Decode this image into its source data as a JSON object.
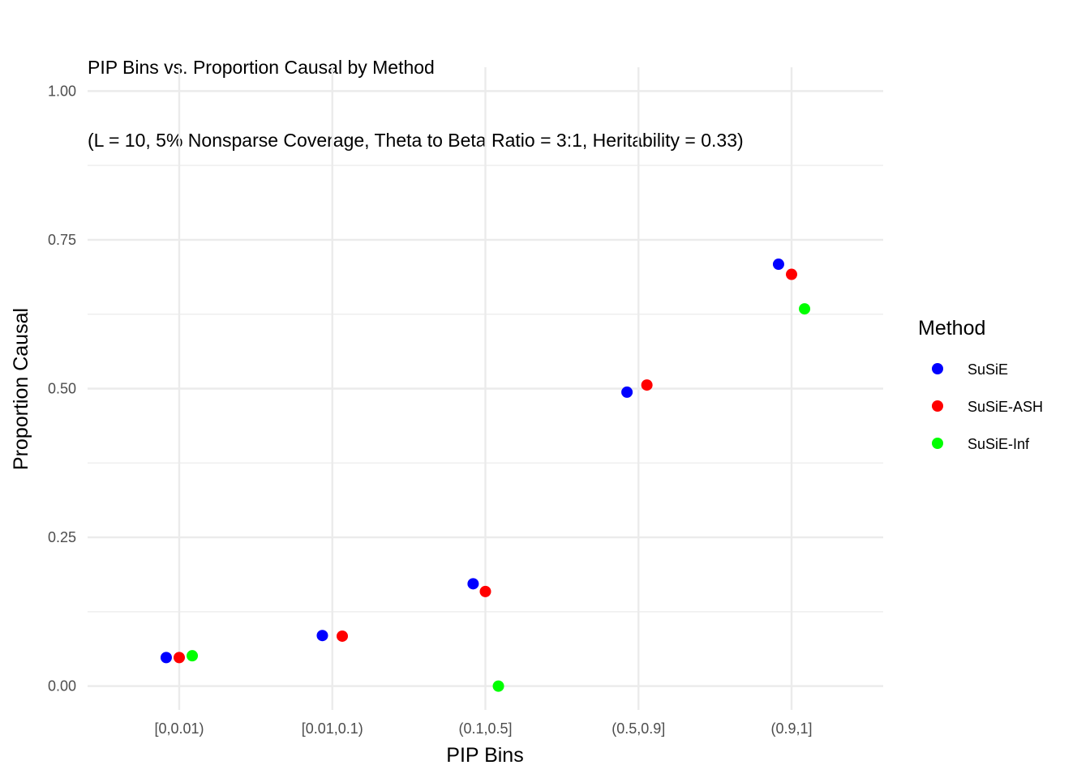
{
  "chart_data": {
    "type": "scatter",
    "title": "PIP Bins vs. Proportion Causal by Method",
    "subtitle": "(L = 10, 5% Nonsparse Coverage, Theta to Beta Ratio = 3:1, Heritability = 0.33)",
    "xlabel": "PIP Bins",
    "ylabel": "Proportion Causal",
    "categories": [
      "[0,0.01)",
      "[0.01,0.1)",
      "(0.1,0.5]",
      "(0.5,0.9]",
      "(0.9,1]"
    ],
    "y_ticks": [
      "0.00",
      "0.25",
      "0.50",
      "0.75",
      "1.00"
    ],
    "ylim": [
      -0.04,
      1.04
    ],
    "grid": true,
    "legend_title": "Method",
    "legend_position": "right",
    "series": [
      {
        "name": "SuSiE",
        "color": "#0000ff",
        "values": [
          0.048,
          0.085,
          0.172,
          0.494,
          0.709
        ],
        "offset": [
          -0.085,
          -0.065,
          -0.08,
          -0.075,
          -0.085
        ]
      },
      {
        "name": "SuSiE-ASH",
        "color": "#ff0000",
        "values": [
          0.048,
          0.084,
          0.159,
          0.506,
          0.692
        ],
        "offset": [
          0.0,
          0.065,
          0.0,
          0.055,
          0.0
        ]
      },
      {
        "name": "SuSiE-Inf",
        "color": "#00ff00",
        "values": [
          0.051,
          null,
          0.0,
          null,
          0.634
        ],
        "offset": [
          0.085,
          0,
          0.085,
          0,
          0.085
        ]
      }
    ]
  }
}
